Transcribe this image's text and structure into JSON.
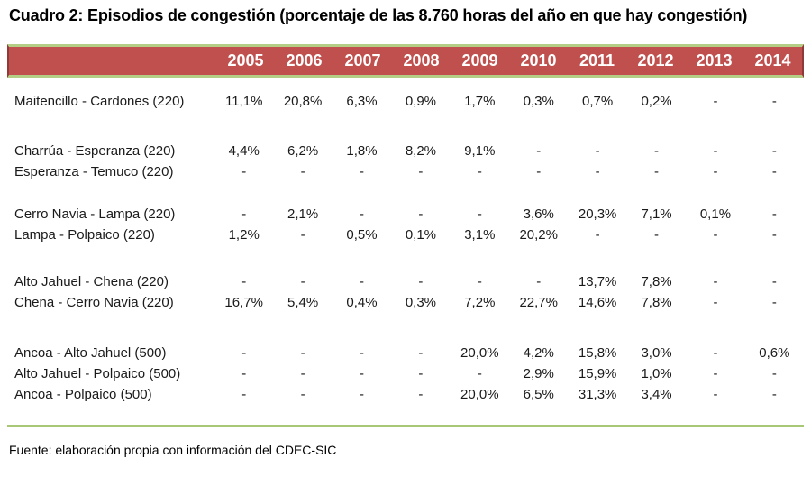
{
  "title": "Cuadro 2: Episodios de congestión (porcentaje de las 8.760 horas del año en que hay congestión)",
  "table": {
    "years": [
      "2005",
      "2006",
      "2007",
      "2008",
      "2009",
      "2010",
      "2011",
      "2012",
      "2013",
      "2014"
    ],
    "groups": [
      {
        "rows": [
          {
            "label": "Maitencillo - Cardones (220)",
            "values": [
              "11,1%",
              "20,8%",
              "6,3%",
              "0,9%",
              "1,7%",
              "0,3%",
              "0,7%",
              "0,2%",
              "-",
              "-"
            ]
          }
        ]
      },
      {
        "rows": [
          {
            "label": "Charrúa - Esperanza (220)",
            "values": [
              "4,4%",
              "6,2%",
              "1,8%",
              "8,2%",
              "9,1%",
              "-",
              "-",
              "-",
              "-",
              "-"
            ]
          },
          {
            "label": "Esperanza - Temuco (220)",
            "values": [
              "-",
              "-",
              "-",
              "-",
              "-",
              "-",
              "-",
              "-",
              "-",
              "-"
            ]
          }
        ]
      },
      {
        "rows": [
          {
            "label": "Cerro Navia - Lampa (220)",
            "values": [
              "-",
              "2,1%",
              "-",
              "-",
              "-",
              "3,6%",
              "20,3%",
              "7,1%",
              "0,1%",
              "-"
            ]
          },
          {
            "label": "Lampa - Polpaico (220)",
            "values": [
              "1,2%",
              "-",
              "0,5%",
              "0,1%",
              "3,1%",
              "20,2%",
              "-",
              "-",
              "-",
              "-"
            ]
          }
        ]
      },
      {
        "rows": [
          {
            "label": "Alto Jahuel - Chena (220)",
            "values": [
              "-",
              "-",
              "-",
              "-",
              "-",
              "-",
              "13,7%",
              "7,8%",
              "-",
              "-"
            ]
          },
          {
            "label": "Chena - Cerro Navia (220)",
            "values": [
              "16,7%",
              "5,4%",
              "0,4%",
              "0,3%",
              "7,2%",
              "22,7%",
              "14,6%",
              "7,8%",
              "-",
              "-"
            ]
          }
        ]
      },
      {
        "rows": [
          {
            "label": "Ancoa - Alto Jahuel (500)",
            "values": [
              "-",
              "-",
              "-",
              "-",
              "20,0%",
              "4,2%",
              "15,8%",
              "3,0%",
              "-",
              "0,6%"
            ]
          },
          {
            "label": "Alto Jahuel - Polpaico (500)",
            "values": [
              "-",
              "-",
              "-",
              "-",
              "-",
              "2,9%",
              "15,9%",
              "1,0%",
              "-",
              "-"
            ]
          },
          {
            "label": "Ancoa - Polpaico (500)",
            "values": [
              "-",
              "-",
              "-",
              "-",
              "20,0%",
              "6,5%",
              "31,3%",
              "3,4%",
              "-",
              "-"
            ]
          }
        ]
      }
    ]
  },
  "footer": {
    "source": "Fuente: elaboración propia con información del CDEC-SIC"
  },
  "colors": {
    "header_bg": "#c0504d",
    "header_text": "#ffffff",
    "header_green_border": "#b5ce85",
    "header_side_border": "#8f3a37",
    "divider_green": "#a8c878",
    "body_text": "#1a1a1a"
  }
}
